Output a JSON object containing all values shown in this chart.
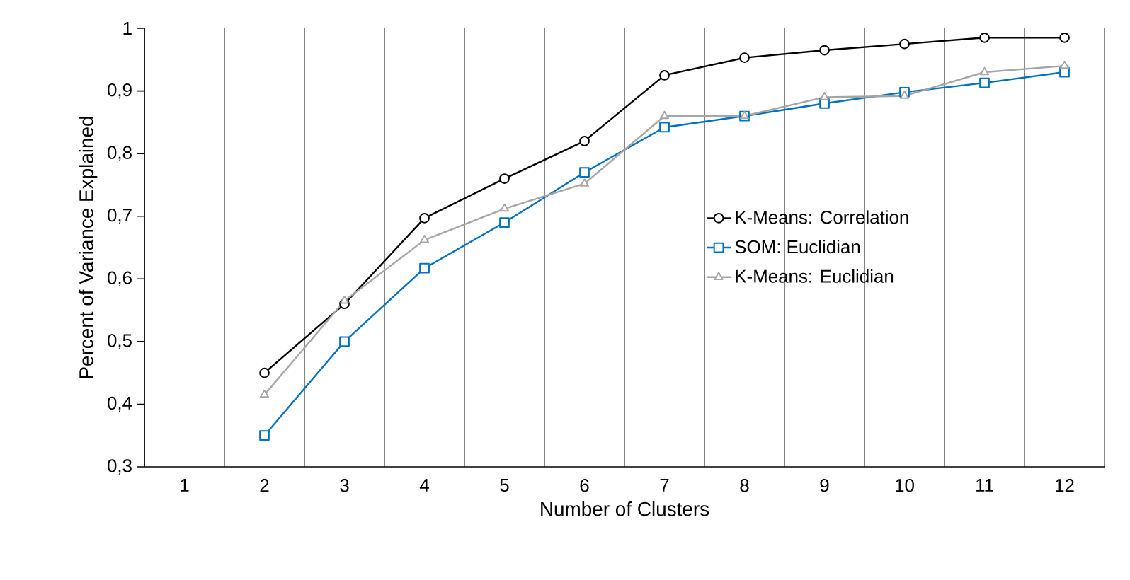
{
  "chart_data": {
    "type": "line",
    "xlabel": "Number of Clusters",
    "ylabel": "Percent of Variance Explained",
    "categories": [
      "1",
      "2",
      "3",
      "4",
      "5",
      "6",
      "7",
      "8",
      "9",
      "10",
      "11",
      "12"
    ],
    "series": [
      {
        "name": "K-Means: Correlation",
        "color": "#000000",
        "marker": "circle",
        "values": [
          null,
          0.45,
          0.56,
          0.697,
          0.76,
          0.82,
          0.925,
          0.953,
          0.965,
          0.975,
          0.985,
          0.985
        ]
      },
      {
        "name": "SOM: Euclidian",
        "color": "#0070c0",
        "marker": "square",
        "values": [
          null,
          0.35,
          0.5,
          0.617,
          0.69,
          0.77,
          0.842,
          0.86,
          0.88,
          0.898,
          0.913,
          0.93
        ]
      },
      {
        "name": "K-Means: Euclidian",
        "color": "#a5a5a5",
        "marker": "triangle",
        "values": [
          null,
          0.415,
          0.565,
          0.662,
          0.712,
          0.752,
          0.86,
          0.86,
          0.89,
          0.892,
          0.93,
          0.94
        ]
      }
    ],
    "ylim": [
      0.3,
      1.0
    ],
    "yticks": [
      {
        "value": 0.3,
        "label": "0,3"
      },
      {
        "value": 0.4,
        "label": "0,4"
      },
      {
        "value": 0.5,
        "label": "0,5"
      },
      {
        "value": 0.6,
        "label": "0,6"
      },
      {
        "value": 0.7,
        "label": "0,7"
      },
      {
        "value": 0.8,
        "label": "0,8"
      },
      {
        "value": 0.9,
        "label": "0,9"
      },
      1
    ],
    "grid": "x",
    "legend": "right",
    "line_style": "solid"
  }
}
